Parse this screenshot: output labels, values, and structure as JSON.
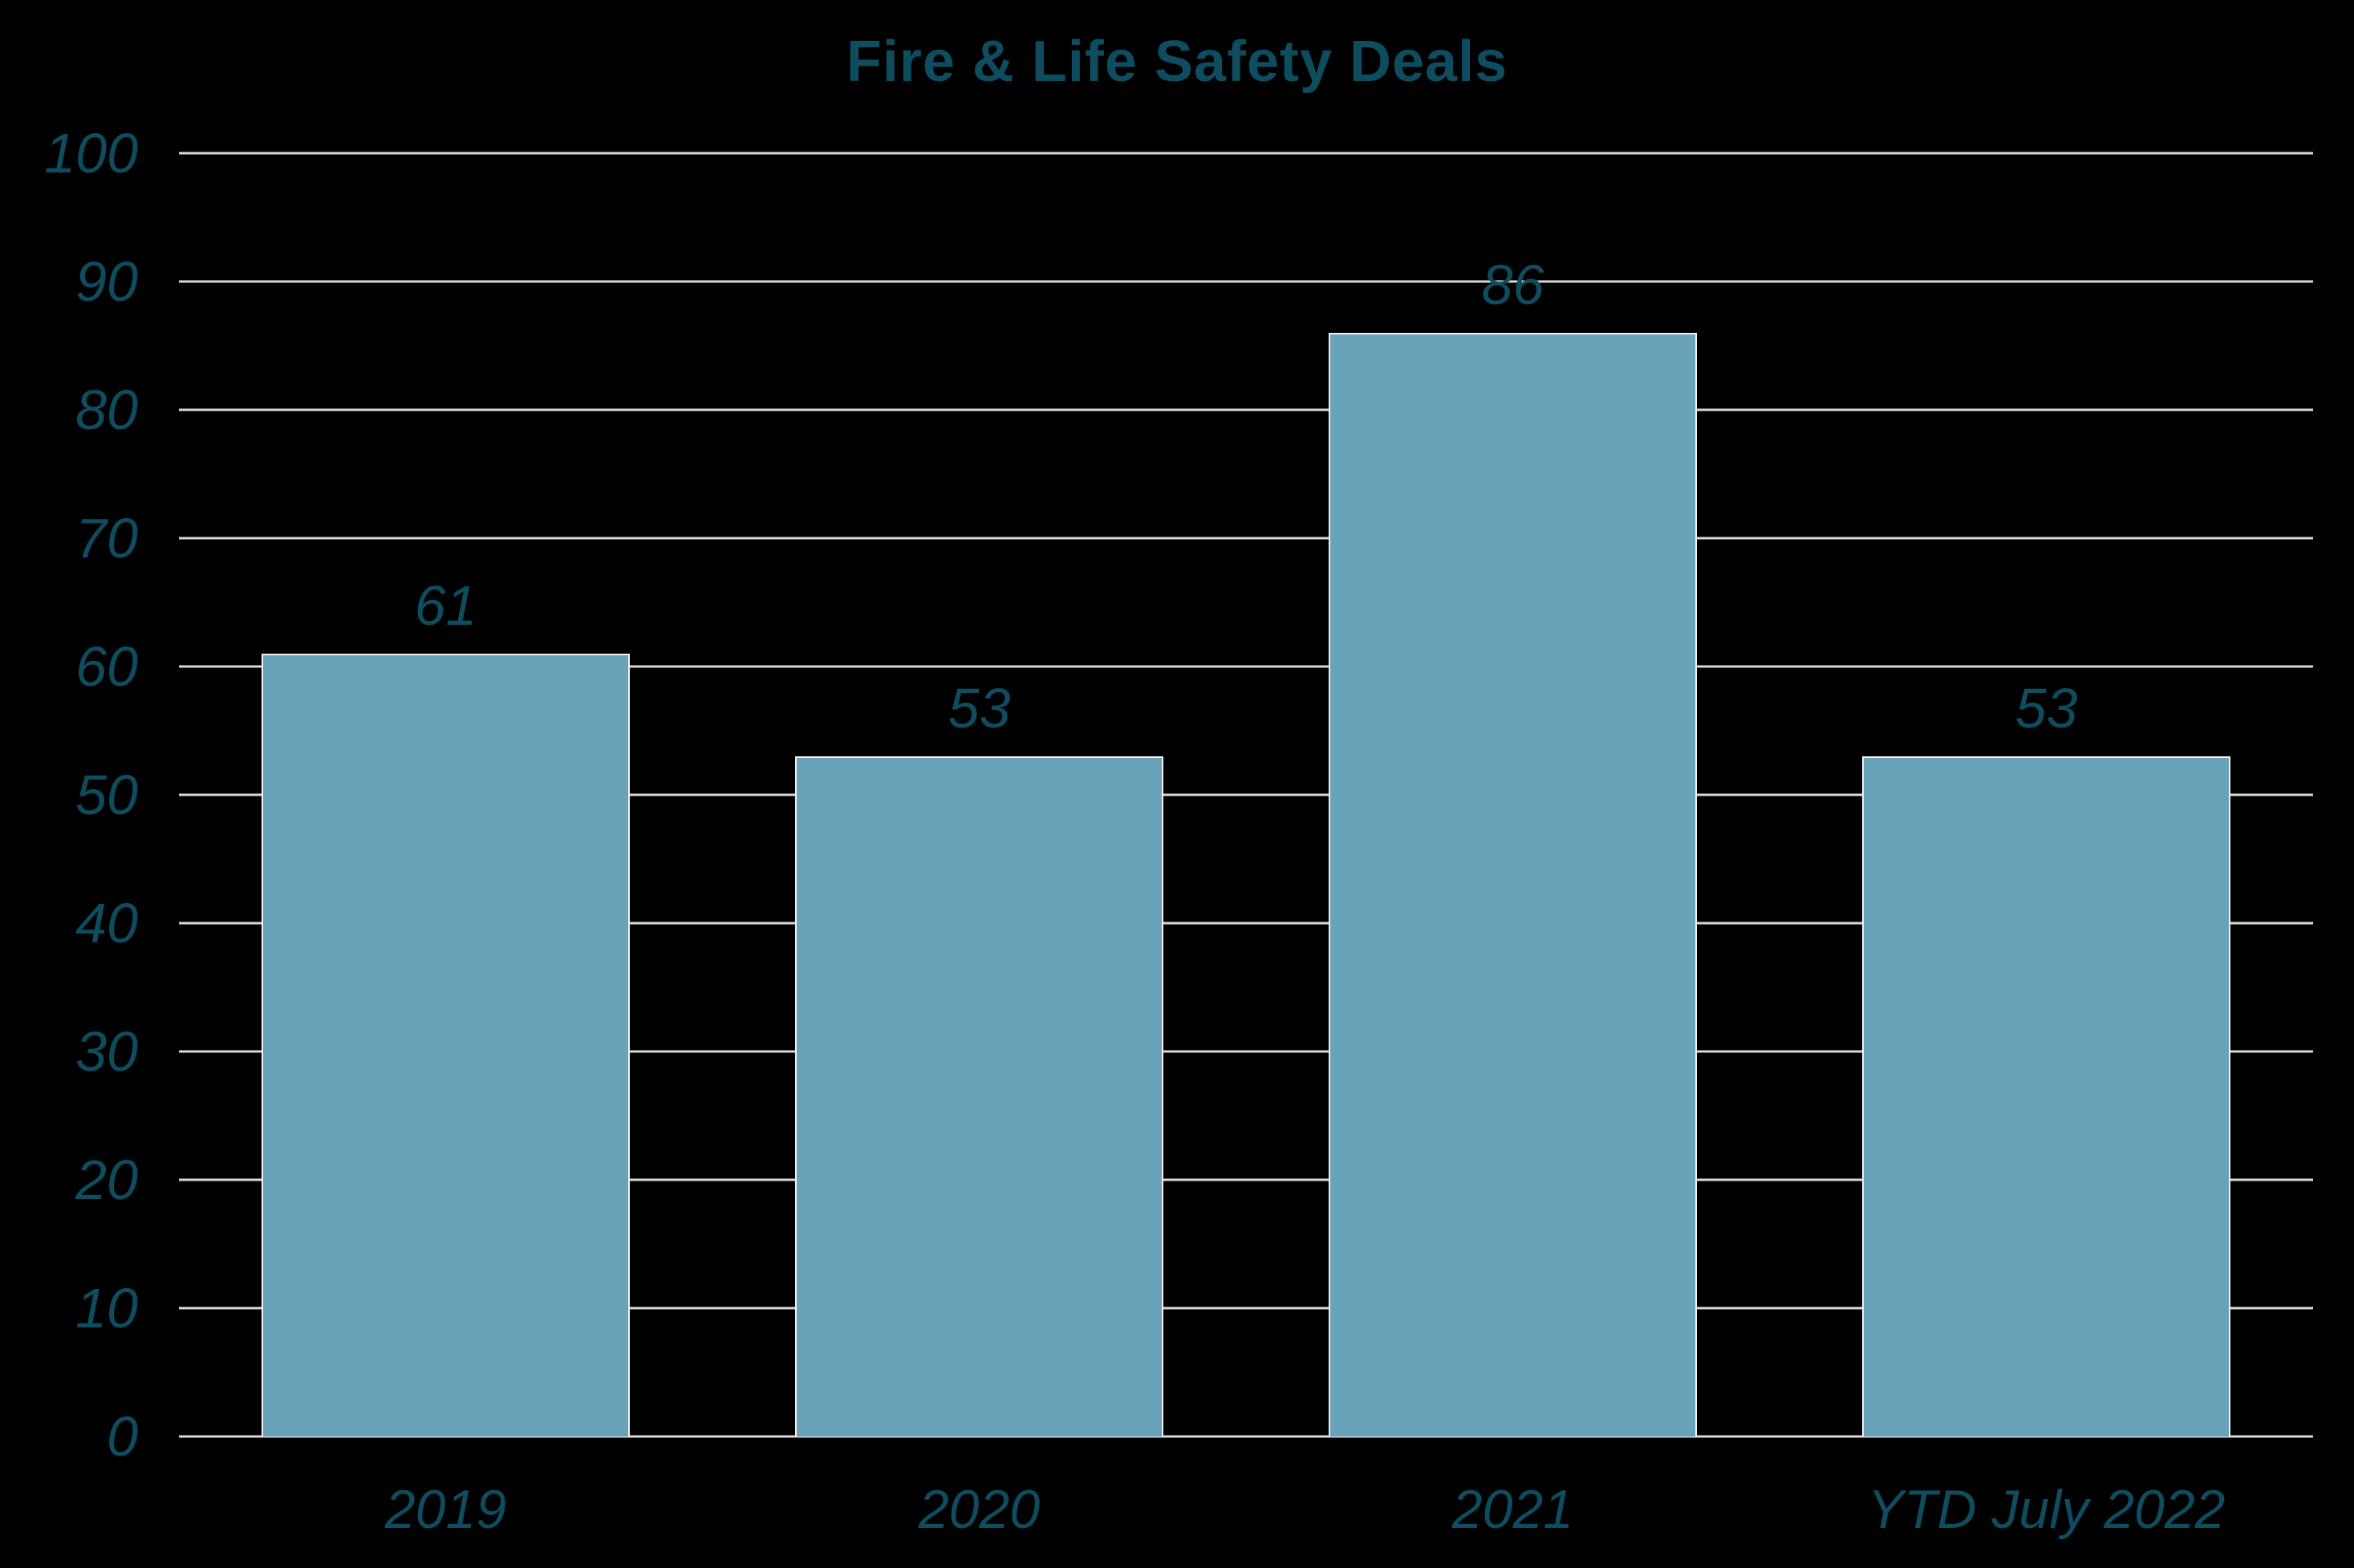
{
  "title": "Fire & Life Safety Deals",
  "colors": {
    "background": "#000000",
    "bar_fill": "#69a3ba",
    "bar_border": "#f2f2f2",
    "gridline": "#d9d9d9",
    "text": "#0d4d5f"
  },
  "chart_data": {
    "type": "bar",
    "title": "Fire & Life Safety Deals",
    "categories": [
      "2019",
      "2020",
      "2021",
      "YTD July 2022"
    ],
    "values": [
      61,
      53,
      86,
      53
    ],
    "value_labels": [
      "61",
      "53",
      "86",
      "53"
    ],
    "xlabel": "",
    "ylabel": "",
    "ylim": [
      0,
      100
    ],
    "ytick_step": 10,
    "yticks": [
      "100",
      "90",
      "80",
      "70",
      "60",
      "50",
      "40",
      "30",
      "20",
      "10",
      "0"
    ],
    "grid": "horizontal",
    "legend_position": "none"
  }
}
